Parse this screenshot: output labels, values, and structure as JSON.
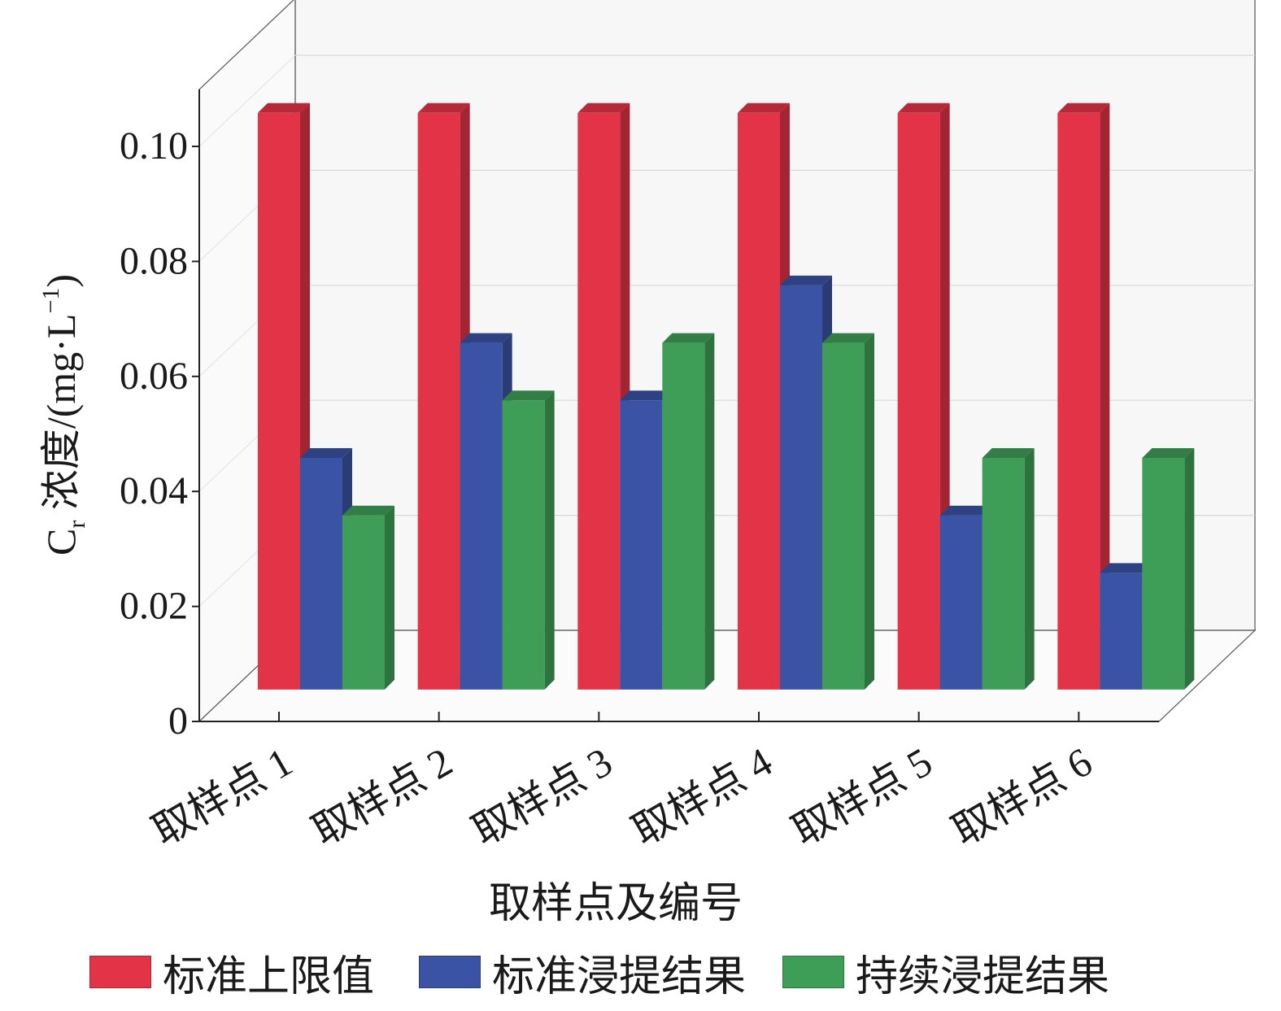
{
  "chart_data": {
    "type": "bar",
    "title": "",
    "xlabel": "取样点及编号",
    "ylabel": {
      "main": "C",
      "sub": "r",
      "rest": " 浓度/(mg·L",
      "sup": "−1",
      "close": ")"
    },
    "ylim": [
      0,
      0.1
    ],
    "yticks": [
      "0",
      "0.02",
      "0.04",
      "0.06",
      "0.08",
      "0.10"
    ],
    "categories": [
      "取样点 1",
      "取样点 2",
      "取样点 3",
      "取样点 4",
      "取样点 5",
      "取样点 6"
    ],
    "series": [
      {
        "name": "标准上限值",
        "color": "#e23347",
        "values": [
          0.1,
          0.1,
          0.1,
          0.1,
          0.1,
          0.1
        ]
      },
      {
        "name": "标准浸提结果",
        "color": "#3a53a4",
        "values": [
          0.04,
          0.06,
          0.05,
          0.07,
          0.03,
          0.02
        ]
      },
      {
        "name": "持续浸提结果",
        "color": "#3e9e57",
        "values": [
          0.03,
          0.05,
          0.06,
          0.06,
          0.04,
          0.04
        ]
      }
    ],
    "legend": "bottom",
    "grid": true,
    "projection": "3d"
  }
}
